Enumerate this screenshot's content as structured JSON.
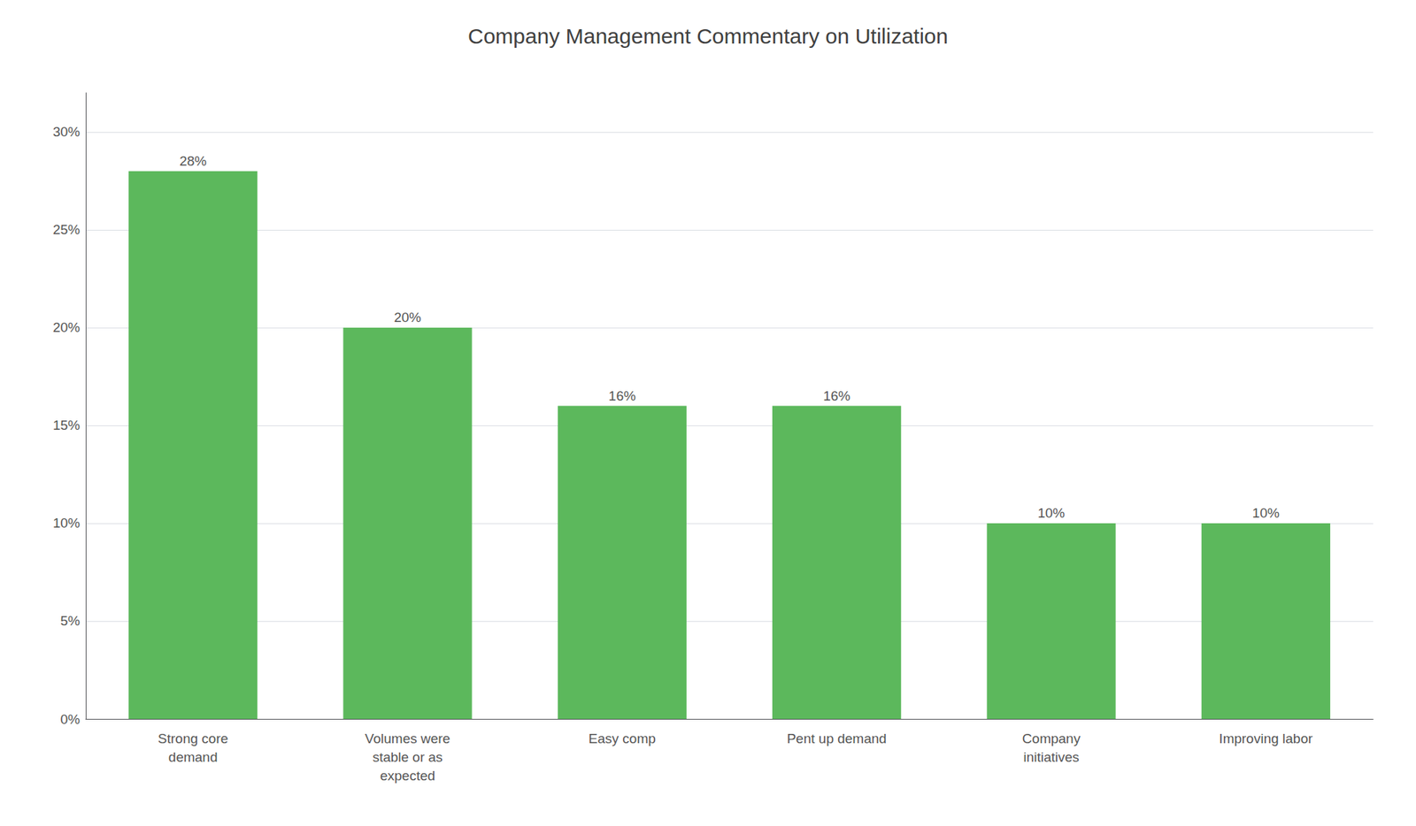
{
  "chart_data": {
    "type": "bar",
    "title": "Company Management Commentary on Utilization",
    "categories": [
      "Strong core\ndemand",
      "Volumes were\nstable or as\nexpected",
      "Easy comp",
      "Pent up demand",
      "Company\ninitiatives",
      "Improving labor"
    ],
    "values": [
      28,
      20,
      16,
      16,
      10,
      10
    ],
    "value_labels": [
      "28%",
      "20%",
      "16%",
      "16%",
      "10%",
      "10%"
    ],
    "color": "#5cb85c",
    "ylim": [
      0,
      32
    ],
    "yticks": [
      {
        "value": 0,
        "label": "0%"
      },
      {
        "value": 5,
        "label": "5%"
      },
      {
        "value": 10,
        "label": "10%"
      },
      {
        "value": 15,
        "label": "15%"
      },
      {
        "value": 20,
        "label": "20%"
      },
      {
        "value": 25,
        "label": "25%"
      },
      {
        "value": 30,
        "label": "30%"
      }
    ],
    "grid": true,
    "data_labels": true
  }
}
